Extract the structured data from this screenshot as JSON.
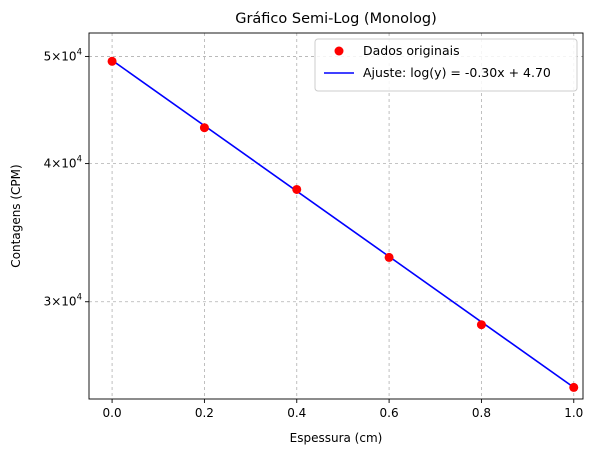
{
  "chart_data": {
    "type": "scatter",
    "title": "Gráfico Semi-Log (Monolog)",
    "xlabel": "Espessura (cm)",
    "ylabel": "Contagens (CPM)",
    "yscale": "log",
    "xlim": [
      -0.05,
      1.02
    ],
    "ylim": [
      24500,
      52500
    ],
    "grid": true,
    "legend_position": "top-right",
    "x_ticks": [
      {
        "value": 0.0,
        "label": "0.0"
      },
      {
        "value": 0.2,
        "label": "0.2"
      },
      {
        "value": 0.4,
        "label": "0.4"
      },
      {
        "value": 0.6,
        "label": "0.6"
      },
      {
        "value": 0.8,
        "label": "0.8"
      },
      {
        "value": 1.0,
        "label": "1.0"
      }
    ],
    "y_ticks": [
      {
        "value": 30000,
        "mantissa": "3",
        "base": "10",
        "exponent": "4"
      },
      {
        "value": 40000,
        "mantissa": "4",
        "base": "10",
        "exponent": "4"
      },
      {
        "value": 50000,
        "mantissa": "5",
        "base": "10",
        "exponent": "4"
      }
    ],
    "series": [
      {
        "name": "Dados originais",
        "kind": "markers",
        "color": "#ff0000",
        "x": [
          0.0,
          0.2,
          0.4,
          0.6,
          0.8,
          1.0
        ],
        "y": [
          49500,
          43100,
          37900,
          32900,
          28600,
          25100
        ]
      },
      {
        "name": "Ajuste: log(y) = -0.30x + 4.70",
        "kind": "line",
        "color": "#0000ff",
        "x": [
          0.0,
          1.0
        ],
        "y": [
          49600,
          25100
        ]
      }
    ]
  }
}
